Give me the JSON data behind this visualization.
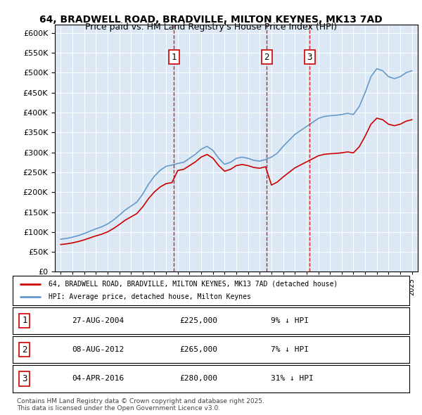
{
  "title_line1": "64, BRADWELL ROAD, BRADVILLE, MILTON KEYNES, MK13 7AD",
  "title_line2": "Price paid vs. HM Land Registry's House Price Index (HPI)",
  "ylabel": "",
  "background_color": "#dce9f5",
  "plot_bg_color": "#dce9f5",
  "sale_dates": [
    "2004-08-27",
    "2012-08-08",
    "2016-04-04"
  ],
  "sale_prices": [
    225000,
    265000,
    280000
  ],
  "sale_labels": [
    "1",
    "2",
    "3"
  ],
  "legend_line1": "64, BRADWELL ROAD, BRADVILLE, MILTON KEYNES, MK13 7AD (detached house)",
  "legend_line2": "HPI: Average price, detached house, Milton Keynes",
  "table_data": [
    [
      "1",
      "27-AUG-2004",
      "£225,000",
      "9% ↓ HPI"
    ],
    [
      "2",
      "08-AUG-2012",
      "£265,000",
      "7% ↓ HPI"
    ],
    [
      "3",
      "04-APR-2016",
      "£280,000",
      "31% ↓ HPI"
    ]
  ],
  "footer": "Contains HM Land Registry data © Crown copyright and database right 2025.\nThis data is licensed under the Open Government Licence v3.0.",
  "ylim": [
    0,
    620000
  ],
  "yticks": [
    0,
    50000,
    100000,
    150000,
    200000,
    250000,
    300000,
    350000,
    400000,
    450000,
    500000,
    550000,
    600000
  ],
  "red_line_color": "#cc0000",
  "blue_line_color": "#6699cc",
  "dashed_line_color": "#cc0000"
}
